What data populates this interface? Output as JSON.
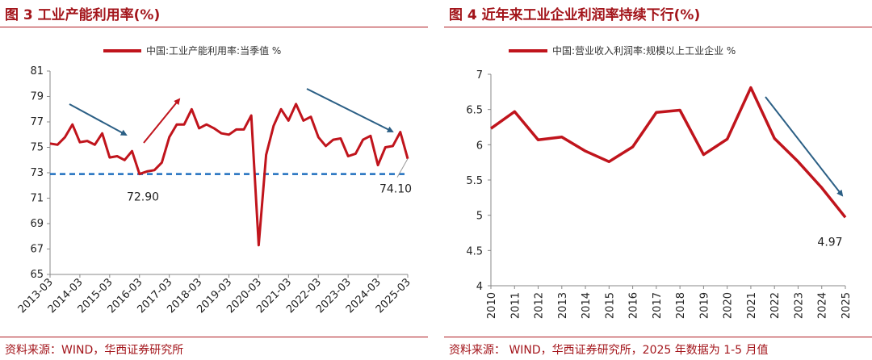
{
  "colors": {
    "title": "#a3151b",
    "series": "#c0141c",
    "arrow_blue": "#2b5f85",
    "arrow_red": "#c0141c",
    "dashed": "#1f6fbf"
  },
  "chart_data": [
    {
      "type": "line",
      "title": "图 3 工业产能利用率(%)",
      "source": "资料来源：WIND，华西证券研究所",
      "legend": "中国:工业产能利用率:当季值 %",
      "legend_position": "top",
      "x_ticks": [
        "2013-03",
        "2014-03",
        "2015-03",
        "2016-03",
        "2017-03",
        "2018-03",
        "2019-03",
        "2020-03",
        "2021-03",
        "2022-03",
        "2023-03",
        "2024-03",
        "2025-03"
      ],
      "ylim": [
        65,
        81
      ],
      "y_ticks": [
        65,
        67,
        69,
        71,
        73,
        75,
        77,
        79,
        81
      ],
      "series": [
        {
          "values": [
            75.3,
            75.2,
            75.8,
            76.8,
            75.4,
            75.5,
            75.2,
            76.1,
            74.2,
            74.3,
            74.0,
            74.7,
            72.9,
            73.1,
            73.2,
            73.8,
            75.8,
            76.8,
            76.8,
            78.0,
            76.5,
            76.8,
            76.5,
            76.1,
            76.0,
            76.4,
            76.4,
            77.5,
            67.3,
            74.4,
            76.7,
            78.0,
            77.1,
            78.4,
            77.1,
            77.4,
            75.8,
            75.1,
            75.6,
            75.7,
            74.3,
            74.5,
            75.6,
            75.9,
            73.6,
            75.0,
            75.1,
            76.2,
            74.1
          ]
        }
      ],
      "reference_line": 72.9,
      "annotations": [
        {
          "text": "72.90",
          "value": 72.9
        },
        {
          "text": "74.10",
          "value": 74.1
        }
      ]
    },
    {
      "type": "line",
      "title": "图 4 近年来工业企业利润率持续下行(%)",
      "source": "资料来源： WIND，华西证券研究所，2025 年数据为 1-5 月值",
      "legend": "中国:营业收入利润率:规模以上工业企业 %",
      "legend_position": "top",
      "x": [
        "2010",
        "2011",
        "2012",
        "2013",
        "2014",
        "2015",
        "2016",
        "2017",
        "2018",
        "2019",
        "2020",
        "2021",
        "2022",
        "2023",
        "2024",
        "2025"
      ],
      "ylim": [
        4,
        7
      ],
      "y_ticks": [
        "4",
        "4.5",
        "5",
        "5.5",
        "6",
        "6.5",
        "7"
      ],
      "series": [
        {
          "values": [
            6.23,
            6.47,
            6.07,
            6.11,
            5.91,
            5.76,
            5.97,
            6.46,
            6.49,
            5.86,
            6.08,
            6.81,
            6.09,
            5.76,
            5.39,
            4.97
          ]
        }
      ],
      "annotations": [
        {
          "text": "4.97",
          "value": 4.97
        }
      ]
    }
  ]
}
